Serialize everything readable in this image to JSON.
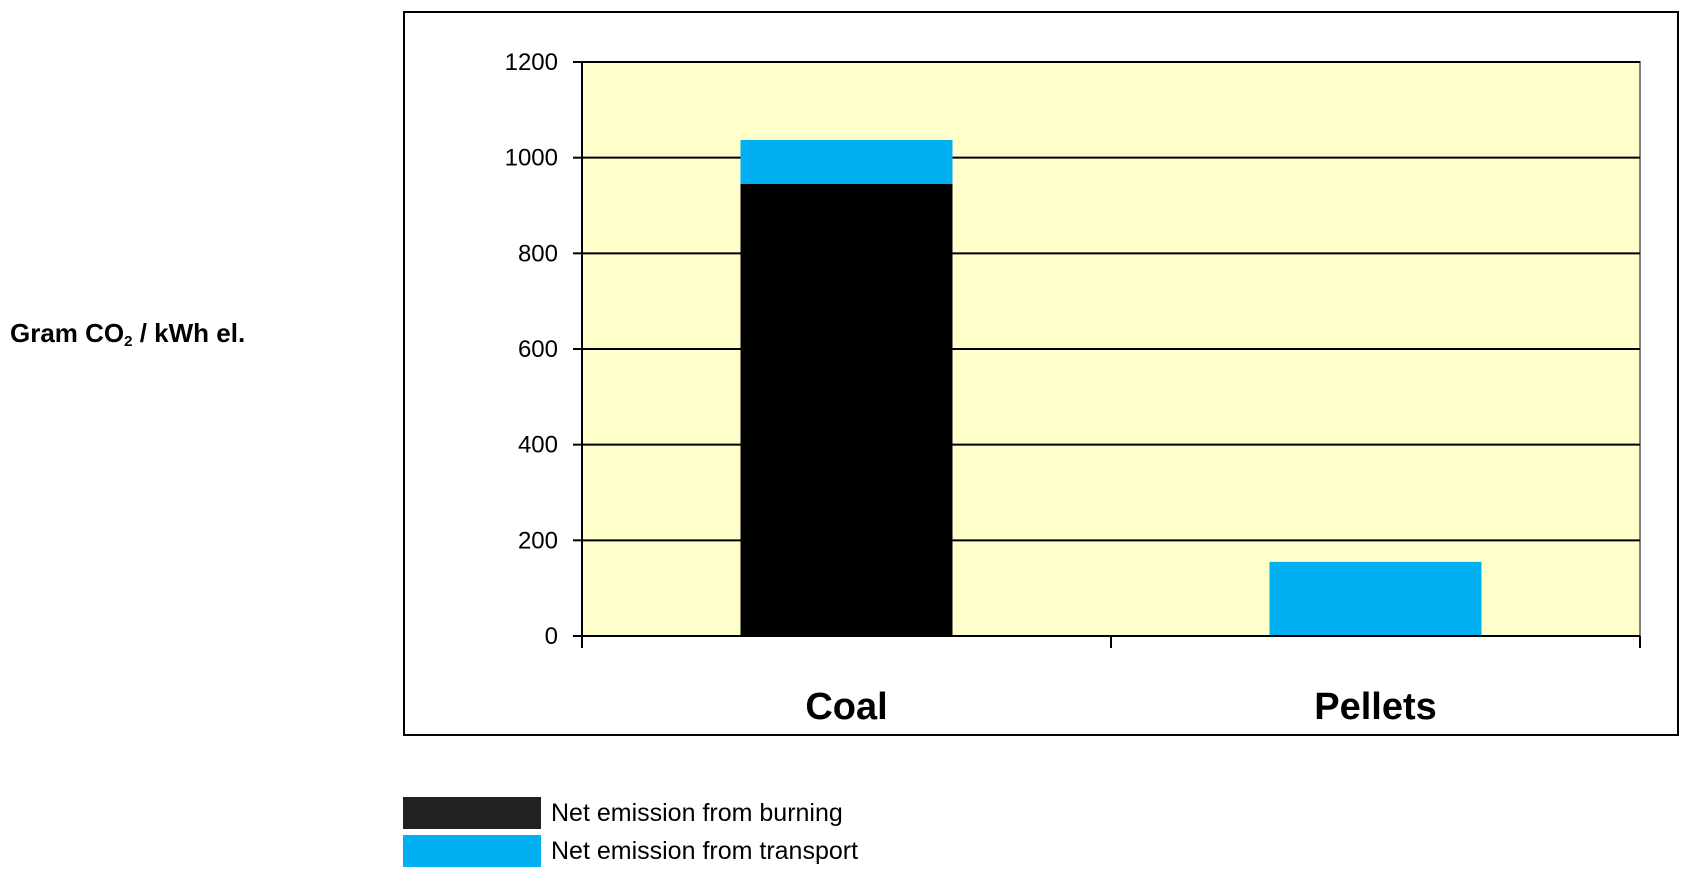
{
  "chart_data": {
    "type": "bar",
    "stacked": true,
    "categories": [
      "Coal",
      "Pellets"
    ],
    "series": [
      {
        "name": "Net emission from burning",
        "color": "#000000",
        "values": [
          945,
          0
        ]
      },
      {
        "name": "Net emission from transport",
        "color": "#00b0f0",
        "values": [
          92,
          155
        ]
      }
    ],
    "ylabel_main": "Gram CO",
    "ylabel_sub": "2",
    "ylabel_rest": " / kWh el.",
    "ylim": [
      0,
      1200
    ],
    "yticks": [
      "0",
      "200",
      "400",
      "600",
      "800",
      "1000",
      "1200"
    ],
    "grid": true,
    "plot_background": "#ffffcc",
    "legend_position": "bottom-left"
  }
}
